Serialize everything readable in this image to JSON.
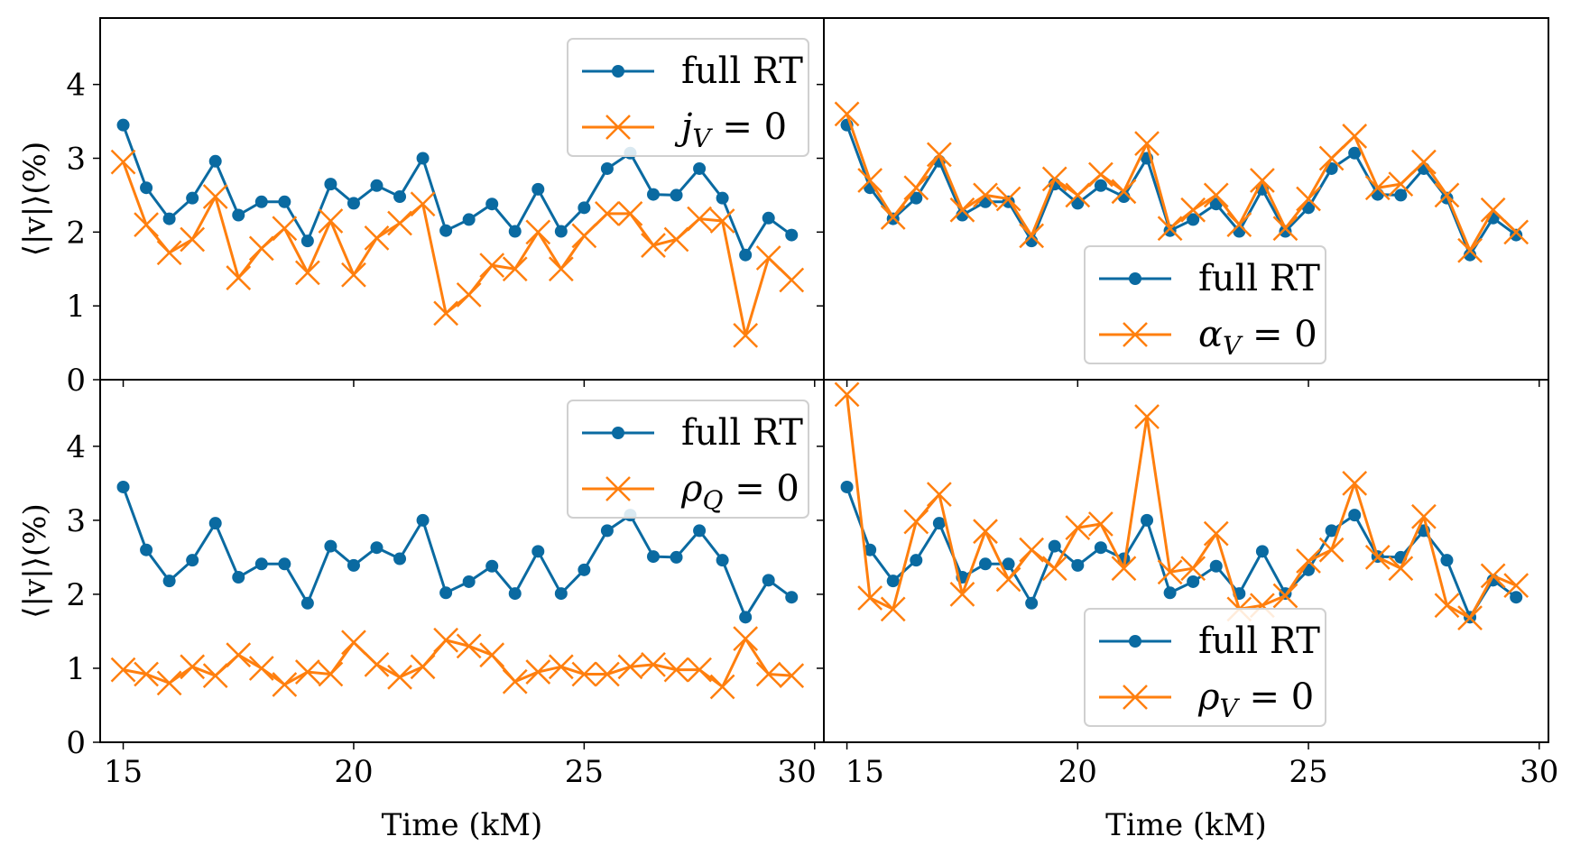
{
  "colors": {
    "full": "#0a6aa1",
    "ablated": "#ff7f0e"
  },
  "chart_data": [
    {
      "type": "line",
      "panel": "top-left",
      "xlabel": "",
      "ylabel": "⟨|v|⟩(%)",
      "xlim": [
        14.5,
        30.2
      ],
      "ylim": [
        0,
        4.9
      ],
      "yticks": [
        "0",
        "1",
        "2",
        "3",
        "4"
      ],
      "xticks": [],
      "legend_position": "upper-right",
      "legend": {
        "full": "full RT",
        "ablated": "j_V = 0"
      },
      "x": [
        15,
        15.5,
        16,
        16.5,
        17,
        17.5,
        18,
        18.5,
        19,
        19.5,
        20,
        20.5,
        21,
        21.5,
        22,
        22.5,
        23,
        23.5,
        24,
        24.5,
        25,
        25.5,
        26,
        26.5,
        27,
        27.5,
        28,
        28.5,
        29,
        29.5
      ],
      "series": [
        {
          "name": "full RT",
          "values": [
            3.45,
            2.6,
            2.18,
            2.46,
            2.96,
            2.23,
            2.41,
            2.41,
            1.88,
            2.65,
            2.39,
            2.63,
            2.48,
            3.0,
            2.02,
            2.17,
            2.38,
            2.01,
            2.58,
            2.01,
            2.33,
            2.86,
            3.07,
            2.51,
            2.5,
            2.86,
            2.46,
            1.69,
            2.19,
            1.96
          ]
        },
        {
          "name": "j_V = 0",
          "values": [
            2.95,
            2.1,
            1.72,
            1.9,
            2.48,
            1.38,
            1.78,
            2.05,
            1.45,
            2.15,
            1.42,
            1.92,
            2.12,
            2.38,
            0.9,
            1.15,
            1.55,
            1.5,
            2.0,
            1.5,
            1.95,
            2.25,
            2.25,
            1.82,
            1.9,
            2.18,
            2.15,
            0.6,
            1.65,
            1.35
          ]
        }
      ]
    },
    {
      "type": "line",
      "panel": "top-right",
      "xlabel": "",
      "ylabel": "",
      "xlim": [
        14.5,
        30.2
      ],
      "ylim": [
        0,
        4.9
      ],
      "yticks": [],
      "xticks": [],
      "legend_position": "lower-right",
      "legend": {
        "full": "full RT",
        "ablated": "α_V = 0"
      },
      "x": [
        15,
        15.5,
        16,
        16.5,
        17,
        17.5,
        18,
        18.5,
        19,
        19.5,
        20,
        20.5,
        21,
        21.5,
        22,
        22.5,
        23,
        23.5,
        24,
        24.5,
        25,
        25.5,
        26,
        26.5,
        27,
        27.5,
        28,
        28.5,
        29,
        29.5
      ],
      "series": [
        {
          "name": "full RT",
          "values": [
            3.45,
            2.6,
            2.18,
            2.46,
            2.96,
            2.23,
            2.41,
            2.41,
            1.88,
            2.65,
            2.39,
            2.63,
            2.48,
            3.0,
            2.02,
            2.17,
            2.38,
            2.01,
            2.58,
            2.01,
            2.33,
            2.86,
            3.07,
            2.51,
            2.5,
            2.86,
            2.46,
            1.69,
            2.19,
            1.96
          ]
        },
        {
          "name": "α_V = 0",
          "values": [
            3.6,
            2.7,
            2.2,
            2.6,
            3.05,
            2.3,
            2.5,
            2.45,
            1.95,
            2.72,
            2.5,
            2.78,
            2.55,
            3.2,
            2.05,
            2.3,
            2.5,
            2.1,
            2.7,
            2.05,
            2.45,
            3.0,
            3.3,
            2.6,
            2.65,
            2.95,
            2.5,
            1.75,
            2.3,
            2.0
          ]
        }
      ]
    },
    {
      "type": "line",
      "panel": "bottom-left",
      "xlabel": "Time (kM)",
      "ylabel": "⟨|v|⟩(%)",
      "xlim": [
        14.5,
        30.2
      ],
      "ylim": [
        0,
        4.9
      ],
      "yticks": [
        "0",
        "1",
        "2",
        "3",
        "4"
      ],
      "xticks": [
        "15",
        "20",
        "25",
        "30"
      ],
      "legend_position": "upper-right",
      "legend": {
        "full": "full RT",
        "ablated": "ρ_Q = 0"
      },
      "x": [
        15,
        15.5,
        16,
        16.5,
        17,
        17.5,
        18,
        18.5,
        19,
        19.5,
        20,
        20.5,
        21,
        21.5,
        22,
        22.5,
        23,
        23.5,
        24,
        24.5,
        25,
        25.5,
        26,
        26.5,
        27,
        27.5,
        28,
        28.5,
        29,
        29.5
      ],
      "series": [
        {
          "name": "full RT",
          "values": [
            3.45,
            2.6,
            2.18,
            2.46,
            2.96,
            2.23,
            2.41,
            2.41,
            1.88,
            2.65,
            2.39,
            2.63,
            2.48,
            3.0,
            2.02,
            2.17,
            2.38,
            2.01,
            2.58,
            2.01,
            2.33,
            2.86,
            3.07,
            2.51,
            2.5,
            2.86,
            2.46,
            1.69,
            2.19,
            1.96
          ]
        },
        {
          "name": "ρ_Q = 0",
          "values": [
            0.98,
            0.92,
            0.8,
            1.02,
            0.9,
            1.18,
            1.0,
            0.78,
            0.95,
            0.92,
            1.35,
            1.05,
            0.88,
            1.02,
            1.38,
            1.3,
            1.18,
            0.82,
            0.95,
            1.02,
            0.92,
            0.92,
            1.02,
            1.05,
            0.98,
            0.98,
            0.75,
            1.4,
            0.92,
            0.9
          ]
        }
      ]
    },
    {
      "type": "line",
      "panel": "bottom-right",
      "xlabel": "Time (kM)",
      "ylabel": "",
      "xlim": [
        14.5,
        30.2
      ],
      "ylim": [
        0,
        4.9
      ],
      "yticks": [],
      "xticks": [
        "15",
        "20",
        "25",
        "30"
      ],
      "legend_position": "lower-right",
      "legend": {
        "full": "full RT",
        "ablated": "ρ_V = 0"
      },
      "x": [
        15,
        15.5,
        16,
        16.5,
        17,
        17.5,
        18,
        18.5,
        19,
        19.5,
        20,
        20.5,
        21,
        21.5,
        22,
        22.5,
        23,
        23.5,
        24,
        24.5,
        25,
        25.5,
        26,
        26.5,
        27,
        27.5,
        28,
        28.5,
        29,
        29.5
      ],
      "series": [
        {
          "name": "full RT",
          "values": [
            3.45,
            2.6,
            2.18,
            2.46,
            2.96,
            2.23,
            2.41,
            2.41,
            1.88,
            2.65,
            2.39,
            2.63,
            2.48,
            3.0,
            2.02,
            2.17,
            2.38,
            2.01,
            2.58,
            2.01,
            2.33,
            2.86,
            3.07,
            2.51,
            2.5,
            2.86,
            2.46,
            1.69,
            2.19,
            1.96
          ]
        },
        {
          "name": "ρ_V = 0",
          "values": [
            4.7,
            1.95,
            1.8,
            2.98,
            3.35,
            2.0,
            2.85,
            2.2,
            2.6,
            2.35,
            2.9,
            2.95,
            2.35,
            4.4,
            2.3,
            2.35,
            2.82,
            1.8,
            1.85,
            1.98,
            2.45,
            2.6,
            3.5,
            2.5,
            2.35,
            3.05,
            1.85,
            1.68,
            2.25,
            2.12
          ]
        }
      ]
    }
  ]
}
